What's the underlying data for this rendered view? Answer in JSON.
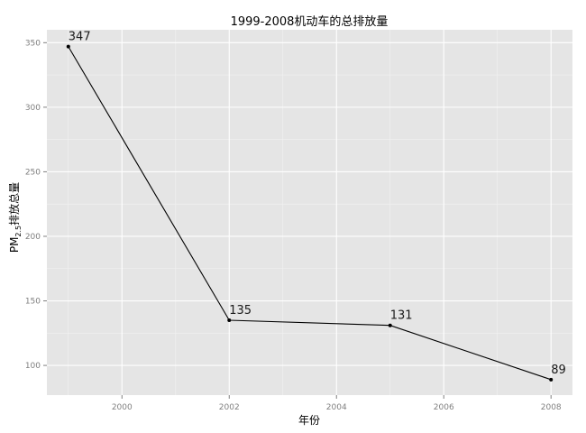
{
  "chart_data": {
    "type": "line",
    "title": "1999-2008机动车的总排放量",
    "xlabel": "年份",
    "ylabel": "PM2.5排放总量",
    "ylabel_parts": {
      "main": "PM",
      "sub": "2.5",
      "rest": "排放总量"
    },
    "x": [
      1999,
      2002,
      2005,
      2008
    ],
    "series": [
      {
        "values": [
          347,
          135,
          131,
          89
        ]
      }
    ],
    "data_labels": [
      "347",
      "135",
      "131",
      "89"
    ],
    "xlim": [
      1998.6,
      2008.4
    ],
    "ylim": [
      77,
      360
    ],
    "x_ticks": [
      2000,
      2002,
      2004,
      2006,
      2008
    ],
    "x_tick_labels": [
      "2000",
      "2002",
      "2004",
      "2006",
      "2008"
    ],
    "y_ticks": [
      100,
      150,
      200,
      250,
      300,
      350
    ],
    "y_tick_labels": [
      "100",
      "150",
      "200",
      "250",
      "300",
      "350"
    ],
    "grid": true,
    "colors": {
      "panel_background": "#e5e5e5",
      "grid_major": "#ffffff",
      "grid_minor": "#f2f2f2",
      "line": "#000000",
      "tick_text": "#7f7f7f"
    }
  }
}
